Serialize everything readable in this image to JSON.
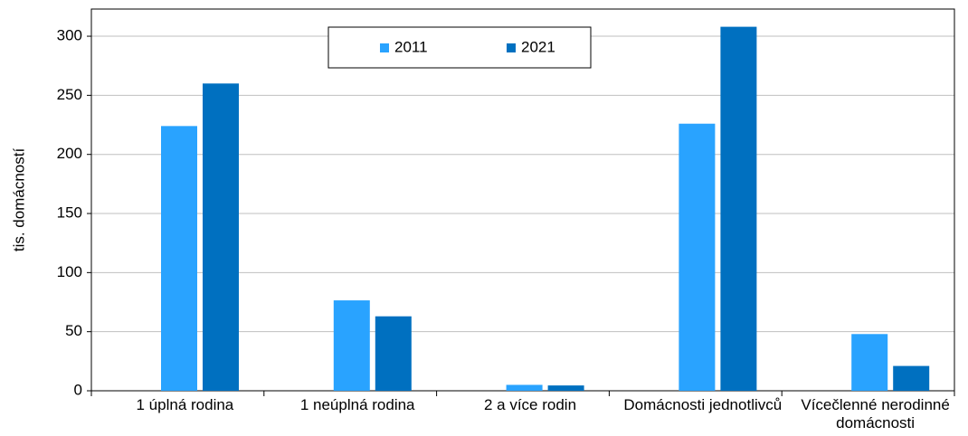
{
  "chart_data": {
    "type": "bar",
    "y_label": "tis. domácností",
    "categories": [
      "1 úplná rodina",
      "1 neúplná rodina",
      "2 a více rodin",
      "Domácnosti jednotlivců",
      "Vícečlenné nerodinné domácnosti"
    ],
    "series": [
      {
        "name": "2011",
        "color": "#29a3ff",
        "values": [
          224,
          76.5,
          5,
          226,
          48
        ]
      },
      {
        "name": "2021",
        "color": "#0070c0",
        "values": [
          260,
          63,
          4.5,
          308,
          21
        ]
      }
    ],
    "ylim": [
      0,
      323
    ],
    "yticks": [
      0,
      50,
      100,
      150,
      200,
      250,
      300
    ],
    "grid": true,
    "legend": "top"
  }
}
